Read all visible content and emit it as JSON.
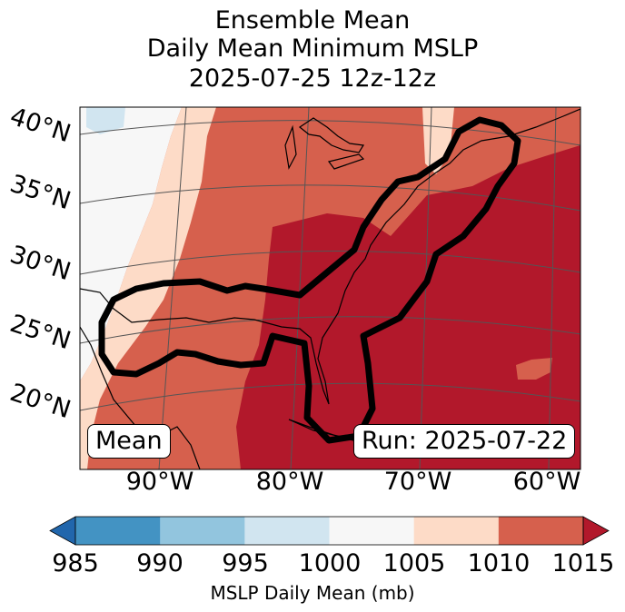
{
  "title": {
    "line1": "Ensemble Mean",
    "line2": "Daily Mean Minimum MSLP",
    "line3": "2025-07-25 12z-12z"
  },
  "map": {
    "left_label": "Mean",
    "right_label": "Run: 2025-07-22",
    "lon_labels": [
      "90°W",
      "80°W",
      "70°W",
      "60°W"
    ],
    "lat_labels": [
      "40°N",
      "35°N",
      "30°N",
      "25°N",
      "20°N"
    ]
  },
  "colorbar": {
    "ticks": [
      "985",
      "990",
      "995",
      "1000",
      "1005",
      "1010",
      "1015"
    ],
    "label": "MSLP Daily Mean (mb)",
    "colors": [
      "#4393c3",
      "#92c5de",
      "#d1e5f0",
      "#f7f7f7",
      "#fddbc7",
      "#d6604d",
      "#b2182b"
    ],
    "under_color": "#2166ac",
    "over_color": "#b2182b"
  },
  "legend_colors": {
    "contour": "#000000",
    "grid": "#555555"
  }
}
